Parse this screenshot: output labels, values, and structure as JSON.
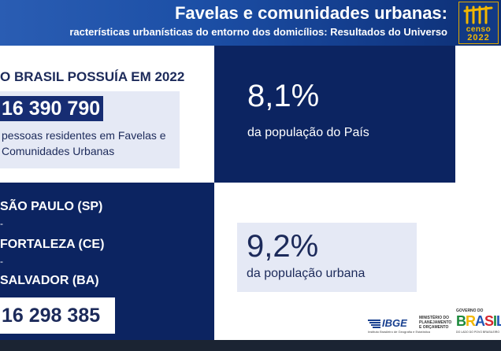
{
  "header": {
    "title": "Favelas e comunidades urbanas:",
    "subtitle": "racterísticas urbanísticas do entorno dos domicílios: Resultados do Universo"
  },
  "logo": {
    "word": "censo",
    "year": "2022"
  },
  "left_top": {
    "headline": "O BRASIL POSSUÍA EM 2022",
    "residents_count": "16 390 790",
    "residents_desc": "pessoas residentes em Favelas e Comunidades Urbanas"
  },
  "right_top": {
    "pct": "8,1%",
    "label": "da população do País"
  },
  "left_bottom": {
    "cities": [
      "SÃO PAULO (SP)",
      "FORTALEZA (CE)",
      "SALVADOR (BA)"
    ],
    "dash": "-",
    "count": "16 298 385"
  },
  "right_bottom": {
    "pct": "9,2%",
    "label": "da população urbana"
  },
  "footer": {
    "ibge": "IBGE",
    "ibge_tagline": "Instituto Brasileiro de Geografia e Estatística",
    "ministry": [
      "MINISTÉRIO DO",
      "PLANEJAMENTO",
      "E ORÇAMENTO"
    ],
    "gov_top": "GOVERNO DO",
    "gov_word": "BRASIL",
    "gov_tagline": "DO LADO DO POVO BRASILEIRO"
  },
  "colors": {
    "navy": "#0c2461",
    "header_blue": "#1c4fa6",
    "light_box": "#e5e9f5",
    "gold": "#f2b700"
  }
}
